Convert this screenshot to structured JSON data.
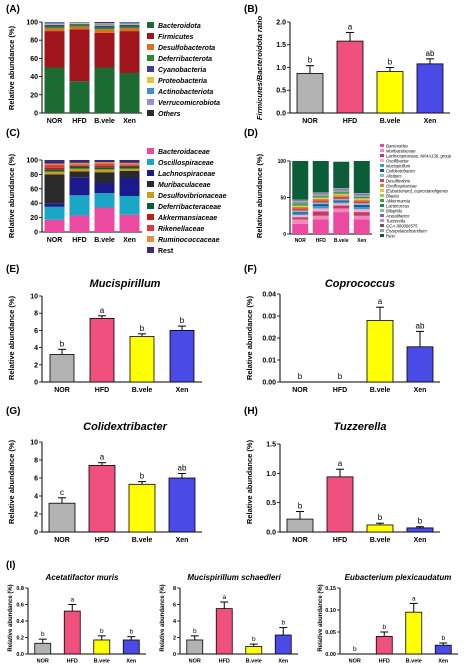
{
  "colors": {
    "NOR": "#b3b3b3",
    "HFD": "#f0507e",
    "B.vele": "#ffff00",
    "Xen": "#4a4ae6"
  },
  "panels": {
    "A": {
      "label": "(A)",
      "ylabel": "Relative abundance (%)",
      "legend": [
        "Bacteroidota",
        "Firmicutes",
        "Desulfobacterota",
        "Deferribacterota",
        "Cyanobacteria",
        "Proteobacteria",
        "Actinobacteriota",
        "Verrucomicrobiota",
        "Others"
      ],
      "legend_colors": [
        "#1b6b32",
        "#a0141b",
        "#e06f1d",
        "#2b8a2b",
        "#3d3d9e",
        "#e7c53a",
        "#3e8ed0",
        "#9a8fd6",
        "#2a2a2a"
      ]
    },
    "B": {
      "label": "(B)",
      "ylabel": "Firmicutes/Bacteroidota ratio"
    },
    "C": {
      "label": "(C)",
      "ylabel": "Relative abundance (%)",
      "legend": [
        "Bacteroidaceae",
        "Oscillospiraceae",
        "Lachnospiraceae",
        "Muribaculaceae",
        "Desulfovibrionaceae",
        "Deferribacteraceae",
        "Akkermansiaceae",
        "Rikenellaceae",
        "Ruminococcaceae",
        "Rest"
      ],
      "legend_colors": [
        "#ec4aa0",
        "#1aa7c5",
        "#1a1a8c",
        "#2a2a2a",
        "#c3a11a",
        "#0b5d3a",
        "#c41a1a",
        "#d93b3b",
        "#e88f3a",
        "#3a2a7a"
      ]
    },
    "D": {
      "label": "(D)",
      "ylabel": "Relative abundance (%)",
      "legend": [
        "Bacteroides",
        "Muribaculaceae",
        "Lachnospiraceae_NK4A136_group",
        "Oscillibacter",
        "Mucispirillum",
        "Colidextribacter",
        "Alistipes",
        "Desulfovibrio",
        "Oscillospiraceae",
        "[Eubacterium]_coprostanoligenes",
        "Blautia",
        "Akkermansia",
        "Lactococcus",
        "Bilophila",
        "Acetatifactor",
        "Tuzzerella",
        "GCA-900066575",
        "Erysipelatoclostridium",
        "Rest"
      ],
      "legend_colors": [
        "#ec4aa0",
        "#f08ab8",
        "#c03a6a",
        "#f4b0c8",
        "#3a9ad0",
        "#1a5a8a",
        "#7ac0e0",
        "#d94040",
        "#e08030",
        "#f0c040",
        "#a0d040",
        "#40a040",
        "#20806a",
        "#80c0a0",
        "#9060c0",
        "#c090e0",
        "#606060",
        "#a0a0a0",
        "#0b5d3a"
      ]
    },
    "E": {
      "label": "(E)",
      "title": "Mucispirillum",
      "ylabel": "Relative abundance (%)"
    },
    "F": {
      "label": "(F)",
      "title": "Coprococcus",
      "ylabel": "Relative abundance (%)"
    },
    "G": {
      "label": "(G)",
      "title": "Colidextribacter",
      "ylabel": "Relative abundance (%)"
    },
    "H": {
      "label": "(H)",
      "title": "Tuzzerella",
      "ylabel": "Relative abundance (%)"
    },
    "I": {
      "label": "(I)",
      "ylabel": "Relative abundance (%)",
      "titles": [
        "Acetatifactor muris",
        "Mucispirillum schaedleri",
        "Eubacterium plexicaudatum"
      ]
    }
  },
  "chart_data": [
    {
      "id": "A",
      "type": "bar",
      "stacked": true,
      "categories": [
        "NOR",
        "HFD",
        "B.vele",
        "Xen"
      ],
      "ylim": [
        0,
        100
      ],
      "yticks": [
        0,
        20,
        40,
        60,
        80,
        100
      ],
      "series": [
        {
          "name": "Bacteroidota",
          "values": [
            50,
            35,
            50,
            44
          ]
        },
        {
          "name": "Firmicutes",
          "values": [
            40,
            57,
            38,
            46
          ]
        },
        {
          "name": "Desulfobacterota",
          "values": [
            3,
            3,
            4,
            3
          ]
        },
        {
          "name": "Deferribacterota",
          "values": [
            2,
            2,
            2,
            2
          ]
        },
        {
          "name": "Cyanobacteria",
          "values": [
            2,
            1,
            2,
            2
          ]
        },
        {
          "name": "Proteobacteria",
          "values": [
            1,
            1,
            1,
            1
          ]
        },
        {
          "name": "Actinobacteriota",
          "values": [
            1,
            1,
            1,
            1
          ]
        },
        {
          "name": "Verrucomicrobiota",
          "values": [
            0.5,
            0,
            1,
            0.5
          ]
        },
        {
          "name": "Others",
          "values": [
            0.5,
            0,
            1,
            0.5
          ]
        }
      ]
    },
    {
      "id": "B",
      "type": "bar",
      "categories": [
        "NOR",
        "HFD",
        "B.vele",
        "Xen"
      ],
      "ylim": [
        0,
        2.0
      ],
      "yticks": [
        "0.0",
        "0.5",
        "1.0",
        "1.5",
        "2.0"
      ],
      "values": [
        0.87,
        1.58,
        0.91,
        1.08
      ],
      "errors": [
        0.17,
        0.19,
        0.09,
        0.11
      ],
      "sig": [
        "b",
        "a",
        "b",
        "ab"
      ]
    },
    {
      "id": "C",
      "type": "bar",
      "stacked": true,
      "categories": [
        "NOR",
        "HFD",
        "B.vele",
        "Xen"
      ],
      "ylim": [
        0,
        100
      ],
      "yticks": [
        0,
        20,
        40,
        60,
        80,
        100
      ],
      "series": [
        {
          "name": "Bacteroidaceae",
          "values": [
            17,
            23,
            34,
            24
          ]
        },
        {
          "name": "Oscillospiraceae",
          "values": [
            18,
            28,
            20,
            26
          ]
        },
        {
          "name": "Lachnospiraceae",
          "values": [
            5,
            25,
            14,
            25
          ]
        },
        {
          "name": "Muribaculaceae",
          "values": [
            40,
            8,
            15,
            10
          ]
        },
        {
          "name": "Desulfovibrionaceae",
          "values": [
            4,
            4,
            4,
            3
          ]
        },
        {
          "name": "Deferribacteraceae",
          "values": [
            3,
            3,
            3,
            3
          ]
        },
        {
          "name": "Akkermansiaceae",
          "values": [
            2,
            1,
            2,
            1
          ]
        },
        {
          "name": "Rikenellaceae",
          "values": [
            4,
            2,
            3,
            2
          ]
        },
        {
          "name": "Ruminococcaceae",
          "values": [
            2,
            2,
            2,
            2
          ]
        },
        {
          "name": "Rest",
          "values": [
            5,
            4,
            3,
            4
          ]
        }
      ]
    },
    {
      "id": "D",
      "type": "bar",
      "stacked": true,
      "categories": [
        "NOR",
        "HFD",
        "B.vele",
        "Xen"
      ],
      "ylim": [
        0,
        100
      ],
      "yticks": [
        0,
        50,
        100
      ],
      "series": [
        {
          "name": "Bacteroides",
          "values": [
            14,
            20,
            30,
            20
          ]
        },
        {
          "name": "Muribaculaceae",
          "values": [
            6,
            5,
            5,
            5
          ]
        },
        {
          "name": "Lachnospiraceae_NK4A136_group",
          "values": [
            3,
            6,
            4,
            5
          ]
        },
        {
          "name": "Oscillibacter",
          "values": [
            3,
            4,
            3,
            4
          ]
        },
        {
          "name": "Mucispirillum",
          "values": [
            2,
            3,
            2,
            3
          ]
        },
        {
          "name": "Colidextribacter",
          "values": [
            2,
            3,
            2,
            3
          ]
        },
        {
          "name": "Alistipes",
          "values": [
            2,
            2,
            2,
            2
          ]
        },
        {
          "name": "Desulfovibrio",
          "values": [
            3,
            3,
            3,
            3
          ]
        },
        {
          "name": "Oscillospiraceae",
          "values": [
            2,
            2,
            2,
            2
          ]
        },
        {
          "name": "[Eubacterium]_coprostanoligenes",
          "values": [
            1,
            1,
            1,
            1
          ]
        },
        {
          "name": "Blautia",
          "values": [
            1,
            1,
            1,
            1
          ]
        },
        {
          "name": "Akkermansia",
          "values": [
            2,
            1,
            2,
            1
          ]
        },
        {
          "name": "Lactococcus",
          "values": [
            1,
            1,
            1,
            1
          ]
        },
        {
          "name": "Bilophila",
          "values": [
            1,
            1,
            1,
            1
          ]
        },
        {
          "name": "Acetatifactor",
          "values": [
            1,
            1,
            1,
            1
          ]
        },
        {
          "name": "Tuzzerella",
          "values": [
            1,
            1,
            1,
            1
          ]
        },
        {
          "name": "GCA-900066575",
          "values": [
            1,
            1,
            1,
            1
          ]
        },
        {
          "name": "Erysipelatoclostridium",
          "values": [
            1,
            1,
            1,
            1
          ]
        },
        {
          "name": "Rest",
          "values": [
            53,
            43,
            36,
            44
          ]
        }
      ]
    },
    {
      "id": "E",
      "type": "bar",
      "categories": [
        "NOR",
        "HFD",
        "B.vele",
        "Xen"
      ],
      "ylim": [
        0,
        10
      ],
      "yticks": [
        "0",
        "2",
        "4",
        "6",
        "8",
        "10"
      ],
      "values": [
        3.2,
        7.4,
        5.3,
        6.0
      ],
      "errors": [
        0.6,
        0.3,
        0.3,
        0.5
      ],
      "sig": [
        "b",
        "a",
        "b",
        "b"
      ]
    },
    {
      "id": "F",
      "type": "bar",
      "categories": [
        "NOR",
        "HFD",
        "B.vele",
        "Xen"
      ],
      "ylim": [
        0,
        0.04
      ],
      "yticks": [
        "0.00",
        "0.01",
        "0.02",
        "0.03",
        "0.04"
      ],
      "values": [
        0,
        0,
        0.028,
        0.016
      ],
      "errors": [
        0,
        0,
        0.006,
        0.007
      ],
      "sig": [
        "b",
        "b",
        "a",
        "ab"
      ]
    },
    {
      "id": "G",
      "type": "bar",
      "categories": [
        "NOR",
        "HFD",
        "B.vele",
        "Xen"
      ],
      "ylim": [
        0,
        10
      ],
      "yticks": [
        "0",
        "2",
        "4",
        "6",
        "8",
        "10"
      ],
      "values": [
        3.2,
        7.4,
        5.3,
        6.0
      ],
      "errors": [
        0.6,
        0.3,
        0.3,
        0.5
      ],
      "sig": [
        "c",
        "a",
        "b",
        "ab"
      ]
    },
    {
      "id": "H",
      "type": "bar",
      "categories": [
        "NOR",
        "HFD",
        "B.vele",
        "Xen"
      ],
      "ylim": [
        0,
        1.5
      ],
      "yticks": [
        "0.0",
        "0.5",
        "1.0",
        "1.5"
      ],
      "values": [
        0.22,
        0.94,
        0.12,
        0.07
      ],
      "errors": [
        0.13,
        0.13,
        0.03,
        0.02
      ],
      "sig": [
        "b",
        "a",
        "b",
        "b"
      ]
    },
    {
      "id": "I1",
      "type": "bar",
      "categories": [
        "NOR",
        "HFD",
        "B.vele",
        "Xen"
      ],
      "ylim": [
        0,
        0.8
      ],
      "yticks": [
        "0.0",
        "0.2",
        "0.4",
        "0.6",
        "0.8"
      ],
      "values": [
        0.13,
        0.52,
        0.17,
        0.17
      ],
      "errors": [
        0.05,
        0.08,
        0.05,
        0.04
      ],
      "sig": [
        "b",
        "a",
        "b",
        "b"
      ]
    },
    {
      "id": "I2",
      "type": "bar",
      "categories": [
        "NOR",
        "HFD",
        "B.vele",
        "Xen"
      ],
      "ylim": [
        0,
        8
      ],
      "yticks": [
        "0",
        "2",
        "4",
        "6",
        "8"
      ],
      "values": [
        1.7,
        5.5,
        0.9,
        2.3
      ],
      "errors": [
        0.5,
        0.8,
        0.3,
        0.9
      ],
      "sig": [
        "b",
        "a",
        "b",
        "b"
      ]
    },
    {
      "id": "I3",
      "type": "bar",
      "categories": [
        "NOR",
        "HFD",
        "B.vele",
        "Xen"
      ],
      "ylim": [
        0,
        0.15
      ],
      "yticks": [
        "0.00",
        "0.05",
        "0.10",
        "0.15"
      ],
      "values": [
        0,
        0.04,
        0.095,
        0.02
      ],
      "errors": [
        0,
        0.01,
        0.02,
        0.005
      ],
      "sig": [
        "b",
        "b",
        "a",
        "b"
      ]
    }
  ]
}
